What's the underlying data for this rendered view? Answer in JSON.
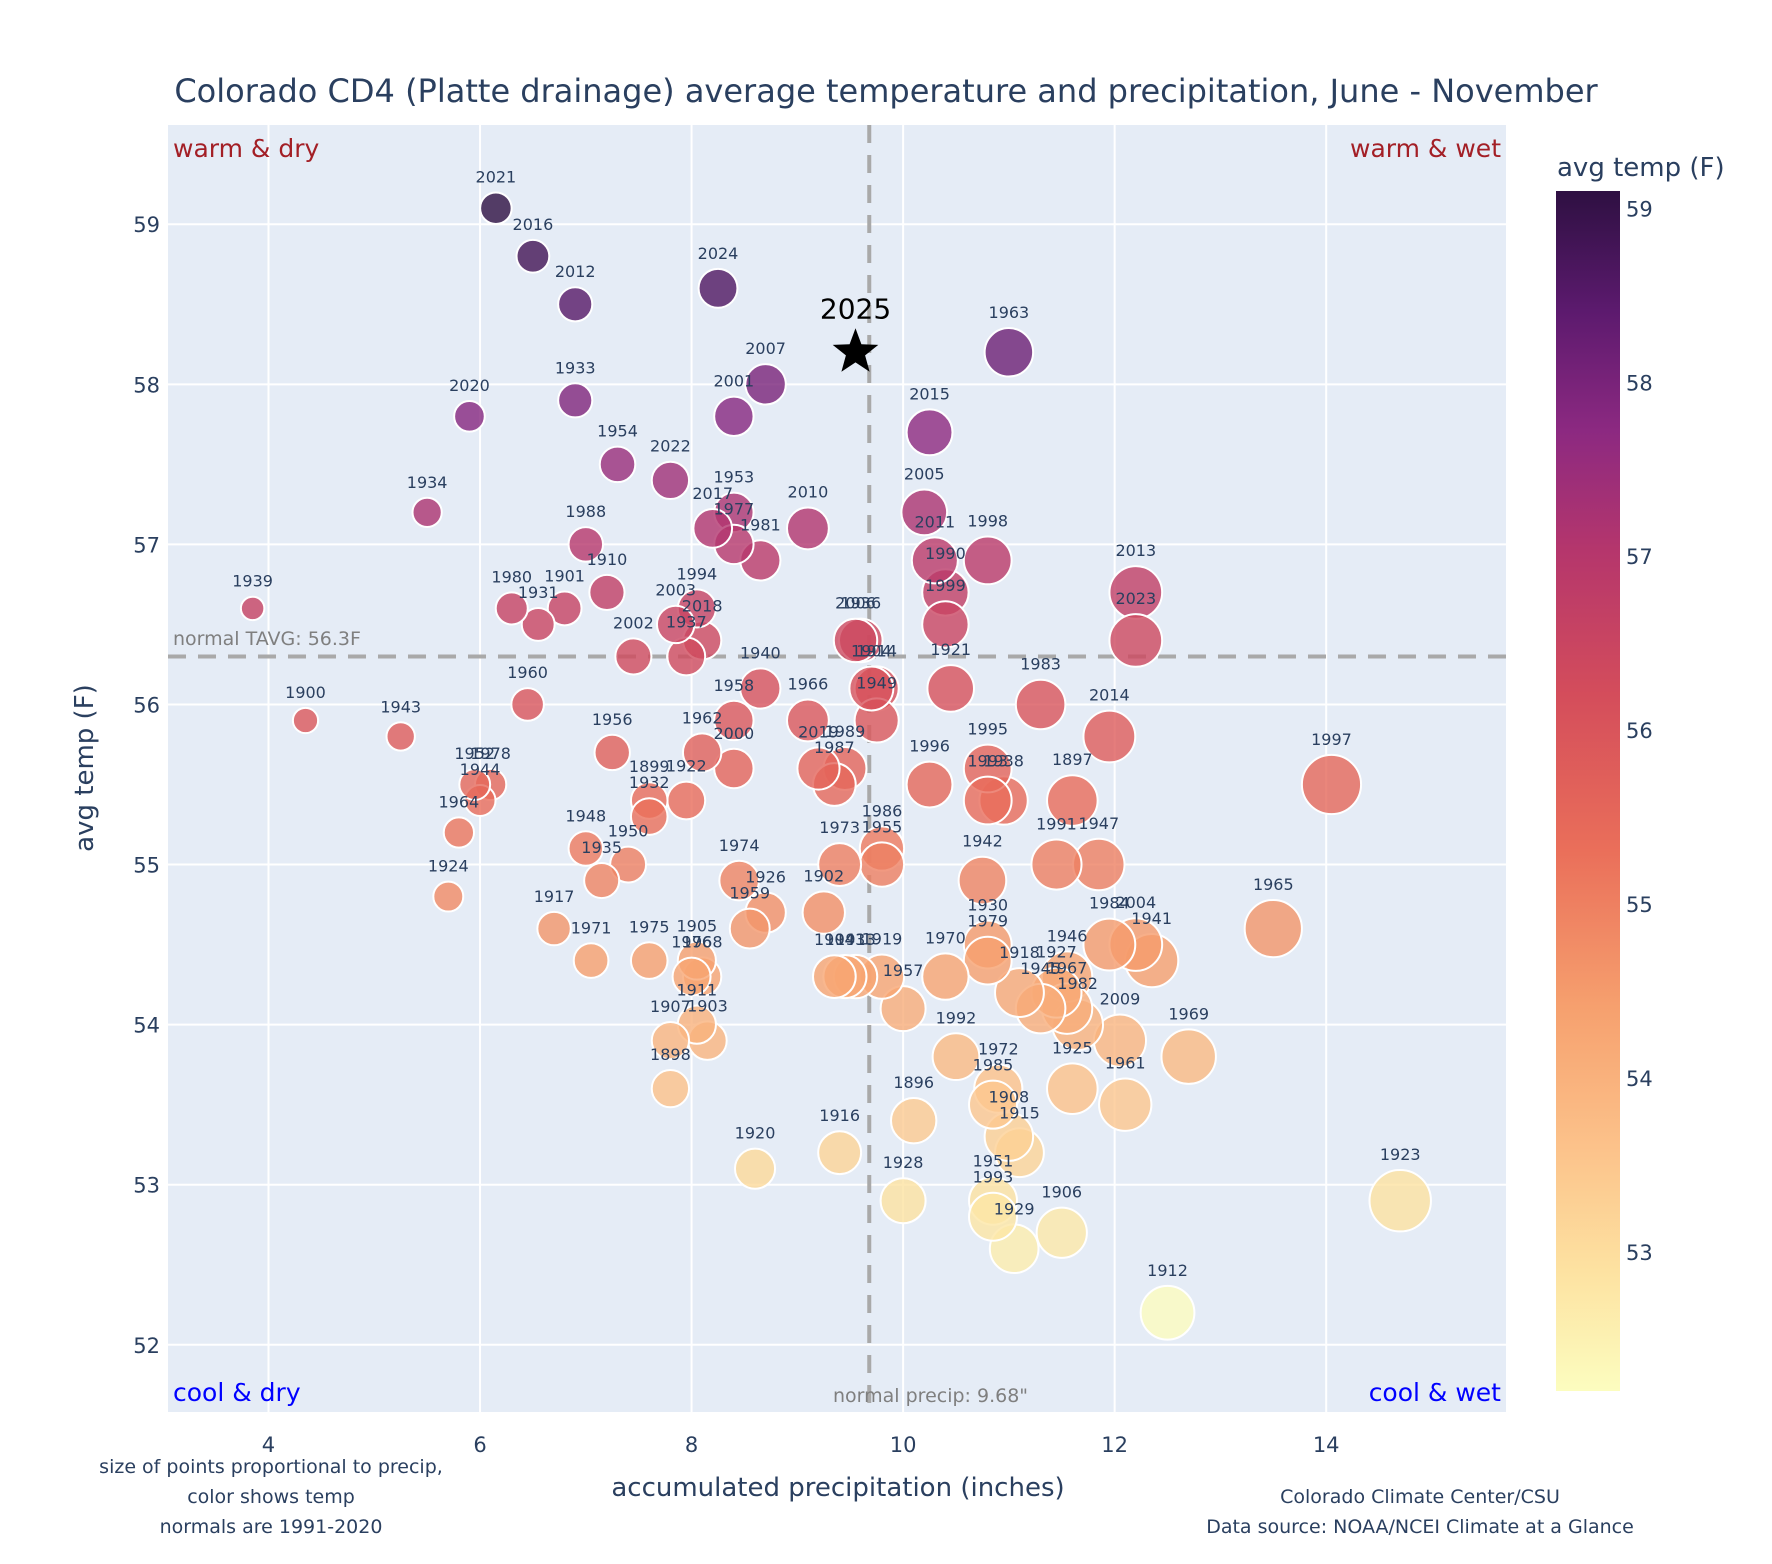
{
  "chart_data": {
    "type": "scatter",
    "title": "Colorado CD4 (Platte drainage) average temperature and precipitation, June - November",
    "xlabel": "accumulated precipitation (inches)",
    "ylabel": "avg temp (F)",
    "xlim": [
      3.05,
      15.7
    ],
    "ylim": [
      51.58,
      59.62
    ],
    "xticks": [
      4,
      6,
      8,
      10,
      12,
      14
    ],
    "yticks": [
      52,
      53,
      54,
      55,
      56,
      57,
      58,
      59
    ],
    "grid": true,
    "colorbar": {
      "title": "avg temp (F)",
      "range": [
        52.2,
        59.1
      ],
      "ticks": [
        53,
        54,
        55,
        56,
        57,
        58,
        59
      ],
      "colorscale": "magma-reversed"
    },
    "normals": {
      "tavg": 56.3,
      "tavg_label": "normal TAVG: 56.3F",
      "precip": 9.68,
      "precip_label": "normal precip: 9.68\""
    },
    "quadrants": {
      "top_left": "warm & dry",
      "top_right": "warm & wet",
      "bottom_left": "cool & dry",
      "bottom_right": "cool & wet"
    },
    "highlight": {
      "label": "2025",
      "x": 9.55,
      "y": 58.2,
      "marker": "star"
    },
    "notes": {
      "left": [
        "size of points proportional to precip,",
        "color shows temp",
        "normals are 1991-2020"
      ],
      "right": [
        "Colorado Climate Center/CSU",
        "Data source: NOAA/NCEI Climate at a Glance"
      ]
    },
    "points": [
      {
        "year": "2021",
        "x": 6.15,
        "y": 59.1
      },
      {
        "year": "2016",
        "x": 6.5,
        "y": 58.8
      },
      {
        "year": "2012",
        "x": 6.9,
        "y": 58.5
      },
      {
        "year": "2024",
        "x": 8.25,
        "y": 58.6
      },
      {
        "year": "1963",
        "x": 11.0,
        "y": 58.2
      },
      {
        "year": "2007",
        "x": 8.7,
        "y": 58.0
      },
      {
        "year": "2020",
        "x": 5.9,
        "y": 57.8
      },
      {
        "year": "1933",
        "x": 6.9,
        "y": 57.9
      },
      {
        "year": "2001",
        "x": 8.4,
        "y": 57.8
      },
      {
        "year": "2015",
        "x": 10.25,
        "y": 57.7
      },
      {
        "year": "1954",
        "x": 7.3,
        "y": 57.5
      },
      {
        "year": "2022",
        "x": 7.8,
        "y": 57.4
      },
      {
        "year": "1934",
        "x": 5.5,
        "y": 57.2
      },
      {
        "year": "2005",
        "x": 10.2,
        "y": 57.2
      },
      {
        "year": "2017",
        "x": 8.2,
        "y": 57.1
      },
      {
        "year": "1953",
        "x": 8.4,
        "y": 57.2
      },
      {
        "year": "1977",
        "x": 8.4,
        "y": 57.0
      },
      {
        "year": "1981",
        "x": 8.65,
        "y": 56.9
      },
      {
        "year": "2010",
        "x": 9.1,
        "y": 57.1
      },
      {
        "year": "1988",
        "x": 7.0,
        "y": 57.0
      },
      {
        "year": "2011",
        "x": 10.3,
        "y": 56.9
      },
      {
        "year": "1998",
        "x": 10.8,
        "y": 56.9
      },
      {
        "year": "1990",
        "x": 10.4,
        "y": 56.7
      },
      {
        "year": "1999",
        "x": 10.4,
        "y": 56.5
      },
      {
        "year": "2013",
        "x": 12.2,
        "y": 56.7
      },
      {
        "year": "2023",
        "x": 12.2,
        "y": 56.4
      },
      {
        "year": "1939",
        "x": 3.85,
        "y": 56.6
      },
      {
        "year": "1980",
        "x": 6.3,
        "y": 56.6
      },
      {
        "year": "1931",
        "x": 6.55,
        "y": 56.5
      },
      {
        "year": "1901",
        "x": 6.8,
        "y": 56.6
      },
      {
        "year": "1910",
        "x": 7.2,
        "y": 56.7
      },
      {
        "year": "1994",
        "x": 8.05,
        "y": 56.6
      },
      {
        "year": "2003",
        "x": 7.85,
        "y": 56.5
      },
      {
        "year": "2018",
        "x": 8.1,
        "y": 56.4
      },
      {
        "year": "1937",
        "x": 7.95,
        "y": 56.3
      },
      {
        "year": "2002",
        "x": 7.45,
        "y": 56.3
      },
      {
        "year": "2006",
        "x": 9.55,
        "y": 56.4
      },
      {
        "year": "1936",
        "x": 9.6,
        "y": 56.4
      },
      {
        "year": "1904",
        "x": 9.7,
        "y": 56.1
      },
      {
        "year": "1914",
        "x": 9.75,
        "y": 56.1
      },
      {
        "year": "1921",
        "x": 10.45,
        "y": 56.1
      },
      {
        "year": "1983",
        "x": 11.3,
        "y": 56.0
      },
      {
        "year": "2014",
        "x": 11.95,
        "y": 55.8
      },
      {
        "year": "1940",
        "x": 8.65,
        "y": 56.1
      },
      {
        "year": "1966",
        "x": 9.1,
        "y": 55.9
      },
      {
        "year": "1958",
        "x": 8.4,
        "y": 55.9
      },
      {
        "year": "1949",
        "x": 9.75,
        "y": 55.9
      },
      {
        "year": "1960",
        "x": 6.45,
        "y": 56.0
      },
      {
        "year": "1900",
        "x": 4.35,
        "y": 55.9
      },
      {
        "year": "1943",
        "x": 5.25,
        "y": 55.8
      },
      {
        "year": "1962",
        "x": 8.1,
        "y": 55.7
      },
      {
        "year": "2000",
        "x": 8.4,
        "y": 55.6
      },
      {
        "year": "1956",
        "x": 7.25,
        "y": 55.7
      },
      {
        "year": "2019",
        "x": 9.2,
        "y": 55.6
      },
      {
        "year": "1989",
        "x": 9.45,
        "y": 55.6
      },
      {
        "year": "1987",
        "x": 9.35,
        "y": 55.5
      },
      {
        "year": "1996",
        "x": 10.25,
        "y": 55.5
      },
      {
        "year": "1995",
        "x": 10.8,
        "y": 55.6
      },
      {
        "year": "1993b",
        "x": 10.8,
        "y": 55.4
      },
      {
        "year": "1938",
        "x": 10.95,
        "y": 55.4
      },
      {
        "year": "1897",
        "x": 11.6,
        "y": 55.4
      },
      {
        "year": "1997",
        "x": 14.05,
        "y": 55.5
      },
      {
        "year": "1952",
        "x": 5.95,
        "y": 55.5
      },
      {
        "year": "1978",
        "x": 6.1,
        "y": 55.5
      },
      {
        "year": "1944",
        "x": 6.0,
        "y": 55.4
      },
      {
        "year": "1964",
        "x": 5.8,
        "y": 55.2
      },
      {
        "year": "1899",
        "x": 7.6,
        "y": 55.4
      },
      {
        "year": "1922",
        "x": 7.95,
        "y": 55.4
      },
      {
        "year": "1932",
        "x": 7.6,
        "y": 55.3
      },
      {
        "year": "1948",
        "x": 7.0,
        "y": 55.1
      },
      {
        "year": "1950",
        "x": 7.4,
        "y": 55.0
      },
      {
        "year": "1935",
        "x": 7.15,
        "y": 54.9
      },
      {
        "year": "1973",
        "x": 9.4,
        "y": 55.0
      },
      {
        "year": "1986",
        "x": 9.8,
        "y": 55.1
      },
      {
        "year": "1955",
        "x": 9.8,
        "y": 55.0
      },
      {
        "year": "1942",
        "x": 10.75,
        "y": 54.9
      },
      {
        "year": "1991",
        "x": 11.45,
        "y": 55.0
      },
      {
        "year": "1947",
        "x": 11.85,
        "y": 55.0
      },
      {
        "year": "1924",
        "x": 5.7,
        "y": 54.8
      },
      {
        "year": "1974",
        "x": 8.45,
        "y": 54.9
      },
      {
        "year": "1926",
        "x": 8.7,
        "y": 54.7
      },
      {
        "year": "1959",
        "x": 8.55,
        "y": 54.6
      },
      {
        "year": "1902",
        "x": 9.25,
        "y": 54.7
      },
      {
        "year": "1965",
        "x": 13.5,
        "y": 54.6
      },
      {
        "year": "1917",
        "x": 6.7,
        "y": 54.6
      },
      {
        "year": "1971",
        "x": 7.05,
        "y": 54.4
      },
      {
        "year": "1975",
        "x": 7.6,
        "y": 54.4
      },
      {
        "year": "1905",
        "x": 8.05,
        "y": 54.4
      },
      {
        "year": "1976",
        "x": 8.0,
        "y": 54.3
      },
      {
        "year": "1968",
        "x": 8.1,
        "y": 54.3
      },
      {
        "year": "1930",
        "x": 10.8,
        "y": 54.5
      },
      {
        "year": "1979",
        "x": 10.8,
        "y": 54.4
      },
      {
        "year": "1984",
        "x": 11.95,
        "y": 54.5
      },
      {
        "year": "2004",
        "x": 12.2,
        "y": 54.5
      },
      {
        "year": "1941",
        "x": 12.35,
        "y": 54.4
      },
      {
        "year": "1970",
        "x": 10.4,
        "y": 54.3
      },
      {
        "year": "1904b",
        "x": 9.35,
        "y": 54.3
      },
      {
        "year": "1943b",
        "x": 9.45,
        "y": 54.3
      },
      {
        "year": "1913",
        "x": 9.55,
        "y": 54.3
      },
      {
        "year": "1919",
        "x": 9.8,
        "y": 54.3
      },
      {
        "year": "1918",
        "x": 11.1,
        "y": 54.2
      },
      {
        "year": "1945",
        "x": 11.3,
        "y": 54.1
      },
      {
        "year": "1946",
        "x": 11.55,
        "y": 54.3
      },
      {
        "year": "1927",
        "x": 11.45,
        "y": 54.2
      },
      {
        "year": "1967",
        "x": 11.55,
        "y": 54.1
      },
      {
        "year": "1982",
        "x": 11.65,
        "y": 54.0
      },
      {
        "year": "1957",
        "x": 10.0,
        "y": 54.1
      },
      {
        "year": "1911",
        "x": 8.05,
        "y": 54.0
      },
      {
        "year": "1907",
        "x": 7.8,
        "y": 53.9
      },
      {
        "year": "1903",
        "x": 8.15,
        "y": 53.9
      },
      {
        "year": "2009",
        "x": 12.05,
        "y": 53.9
      },
      {
        "year": "1969",
        "x": 12.7,
        "y": 53.8
      },
      {
        "year": "1992",
        "x": 10.5,
        "y": 53.8
      },
      {
        "year": "1898",
        "x": 7.8,
        "y": 53.6
      },
      {
        "year": "1972",
        "x": 10.9,
        "y": 53.6
      },
      {
        "year": "1985",
        "x": 10.85,
        "y": 53.5
      },
      {
        "year": "1925",
        "x": 11.6,
        "y": 53.6
      },
      {
        "year": "1961",
        "x": 12.1,
        "y": 53.5
      },
      {
        "year": "1896",
        "x": 10.1,
        "y": 53.4
      },
      {
        "year": "1908",
        "x": 11.0,
        "y": 53.3
      },
      {
        "year": "1915",
        "x": 11.1,
        "y": 53.2
      },
      {
        "year": "1916",
        "x": 9.4,
        "y": 53.2
      },
      {
        "year": "1920",
        "x": 8.6,
        "y": 53.1
      },
      {
        "year": "1928",
        "x": 10.0,
        "y": 52.9
      },
      {
        "year": "1951",
        "x": 10.85,
        "y": 52.9
      },
      {
        "year": "1993",
        "x": 10.85,
        "y": 52.8
      },
      {
        "year": "1929",
        "x": 11.05,
        "y": 52.6
      },
      {
        "year": "1906",
        "x": 11.5,
        "y": 52.7
      },
      {
        "year": "1923",
        "x": 14.7,
        "y": 52.9
      },
      {
        "year": "1912",
        "x": 12.5,
        "y": 52.2
      }
    ]
  }
}
